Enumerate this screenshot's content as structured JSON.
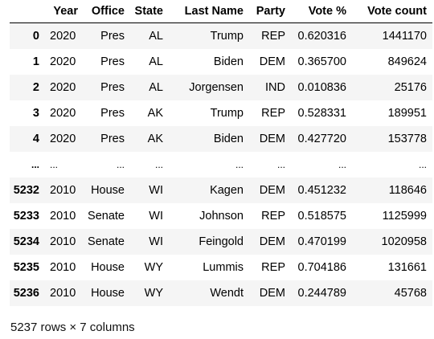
{
  "table": {
    "columns": [
      "",
      "Year",
      "Office",
      "State",
      "Last Name",
      "Party",
      "Vote %",
      "Vote count"
    ],
    "rows": [
      [
        "0",
        "2020",
        "Pres",
        "AL",
        "Trump",
        "REP",
        "0.620316",
        "1441170"
      ],
      [
        "1",
        "2020",
        "Pres",
        "AL",
        "Biden",
        "DEM",
        "0.365700",
        "849624"
      ],
      [
        "2",
        "2020",
        "Pres",
        "AL",
        "Jorgensen",
        "IND",
        "0.010836",
        "25176"
      ],
      [
        "3",
        "2020",
        "Pres",
        "AK",
        "Trump",
        "REP",
        "0.528331",
        "189951"
      ],
      [
        "4",
        "2020",
        "Pres",
        "AK",
        "Biden",
        "DEM",
        "0.427720",
        "153778"
      ],
      [
        "...",
        "...",
        "...",
        "...",
        "...",
        "...",
        "...",
        "..."
      ],
      [
        "5232",
        "2010",
        "House",
        "WI",
        "Kagen",
        "DEM",
        "0.451232",
        "118646"
      ],
      [
        "5233",
        "2010",
        "Senate",
        "WI",
        "Johnson",
        "REP",
        "0.518575",
        "1125999"
      ],
      [
        "5234",
        "2010",
        "Senate",
        "WI",
        "Feingold",
        "DEM",
        "0.470199",
        "1020958"
      ],
      [
        "5235",
        "2010",
        "House",
        "WY",
        "Lummis",
        "REP",
        "0.704186",
        "131661"
      ],
      [
        "5236",
        "2010",
        "House",
        "WY",
        "Wendt",
        "DEM",
        "0.244789",
        "45768"
      ]
    ]
  },
  "footer": {
    "shape_text": "5237 rows × 7 columns"
  }
}
